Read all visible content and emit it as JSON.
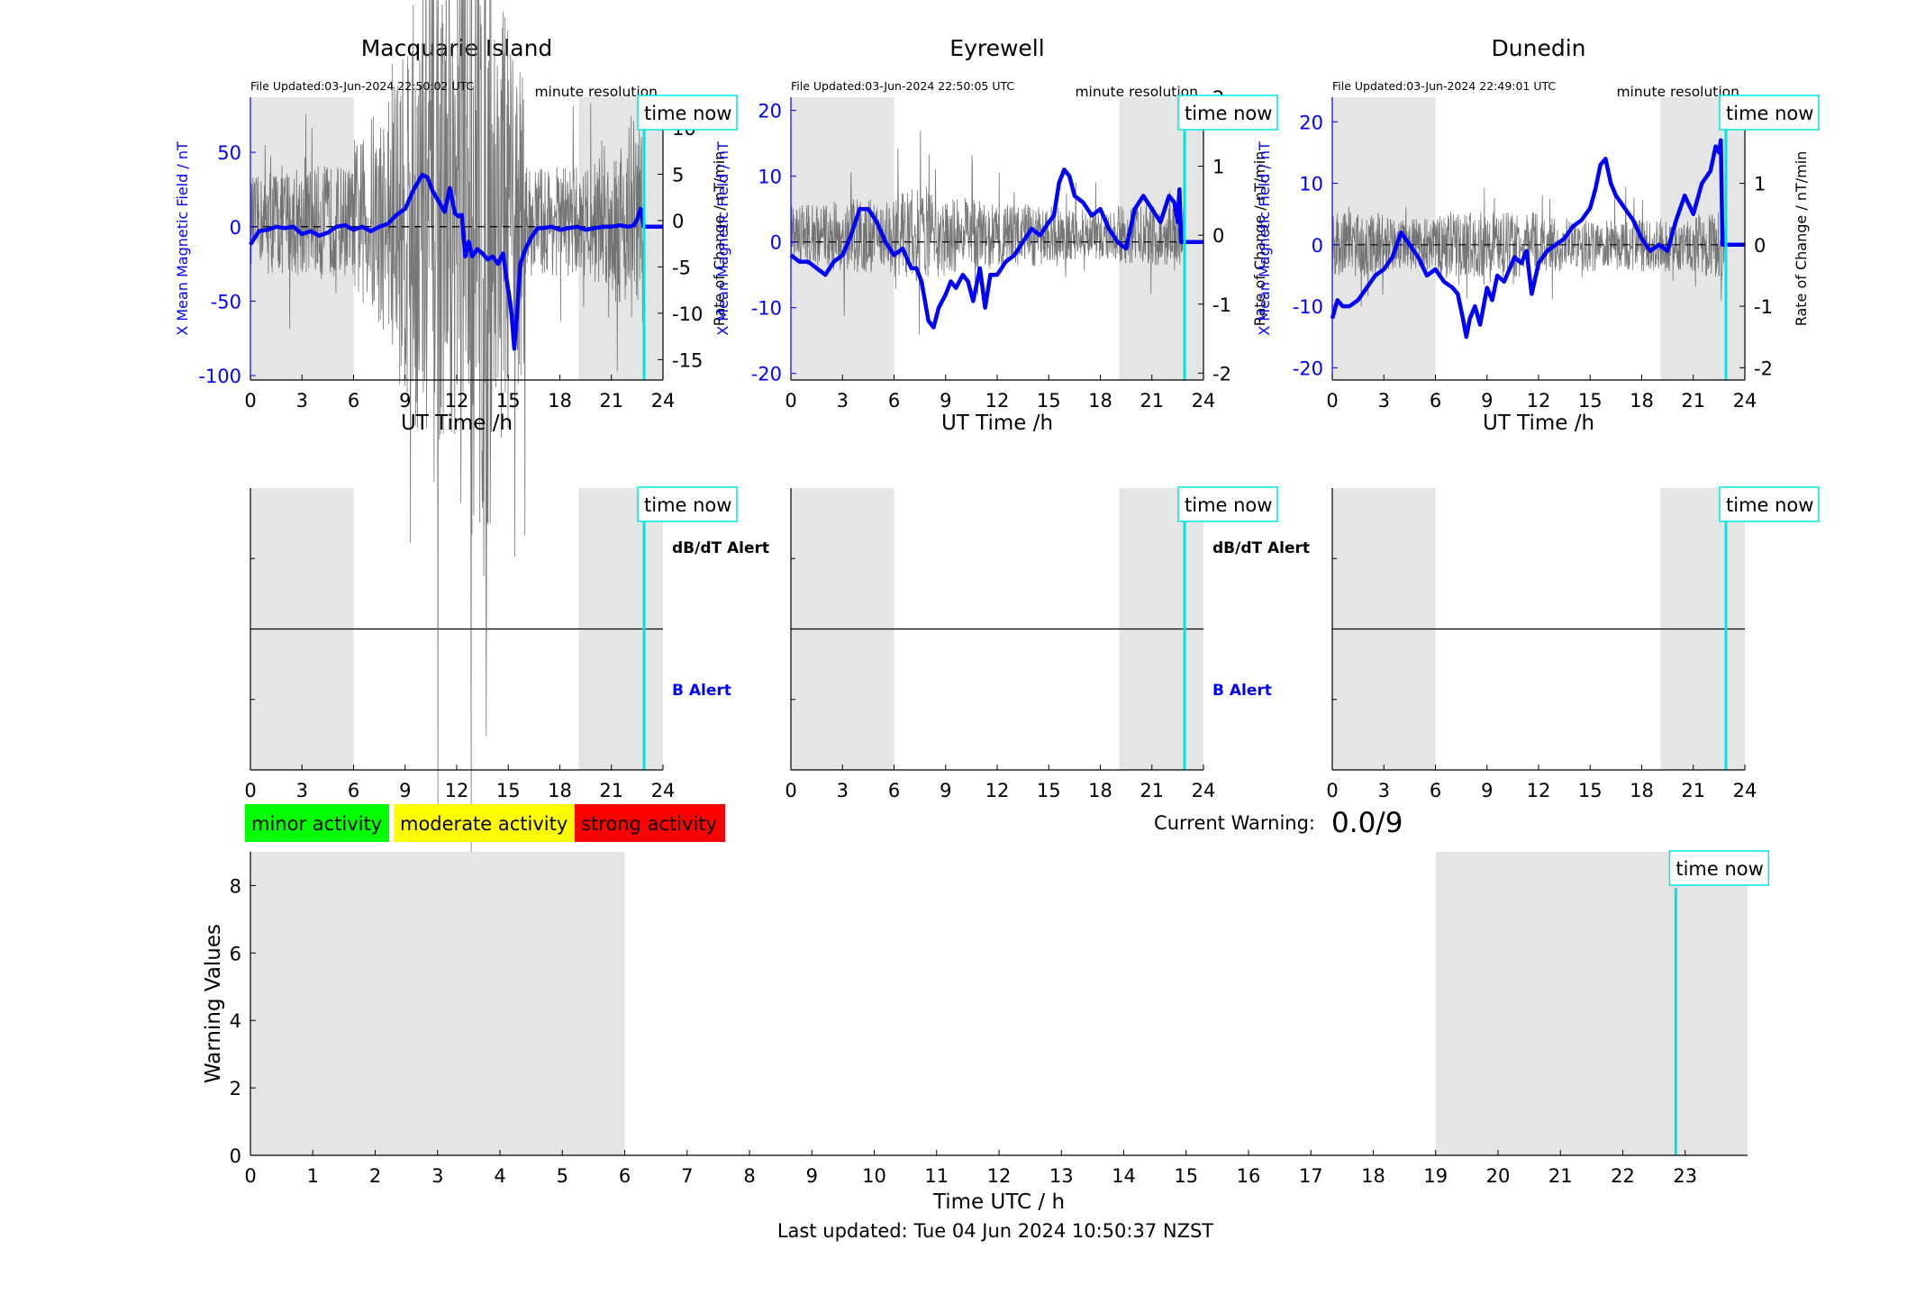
{
  "figure": {
    "current_warning_label": "Current Warning:",
    "current_warning_value": "0.0/9",
    "last_updated": "Last updated: Tue 04 Jun 2024 10:50:37 NZST",
    "legend": [
      {
        "label": "minor activity",
        "color": "#00ff00"
      },
      {
        "label": "moderate activity",
        "color": "#ffff00"
      },
      {
        "label": "strong activity",
        "color": "#ff0000"
      }
    ],
    "colors": {
      "field": "#0000ff",
      "rate": "#555555",
      "now": "#00e5e5",
      "night": "#e5e5e5",
      "b_alert": "#0000ff"
    }
  },
  "chart_data": [
    {
      "type": "line",
      "title": "Macquarie Island",
      "file_updated": "File Updated:03-Jun-2024 22:50:02 UTC",
      "resolution": "minute resolution",
      "now_label": "time now",
      "now_hour": 22.9,
      "night_spans": [
        [
          0,
          6
        ],
        [
          19.1,
          24
        ]
      ],
      "xlabel": "UT Time /h",
      "xlim": [
        0,
        24
      ],
      "xticks": [
        "0",
        "3",
        "6",
        "9",
        "12",
        "15",
        "18",
        "21",
        "24"
      ],
      "ylabel_left": "X Mean Magnetic Field / nT",
      "ylim_left": [
        -103,
        87
      ],
      "yticks_left": [
        "50",
        "0",
        "-50",
        "-100"
      ],
      "ytick_values_left": [
        50,
        0,
        -50,
        -100
      ],
      "ylabel_right": "Rate of Change / nT/min",
      "ylim_right": [
        -17.2,
        13.3
      ],
      "yticks_right": [
        "10",
        "5",
        "0",
        "-5",
        "-10",
        "-15"
      ],
      "ytick_values_right": [
        10,
        5,
        0,
        -5,
        -10,
        -15
      ],
      "series": [
        {
          "name": "X Mean Magnetic Field / nT",
          "axis": "left",
          "x": [
            0,
            0.5,
            1,
            1.5,
            2,
            2.5,
            3,
            3.5,
            4,
            4.5,
            5,
            5.5,
            6,
            6.5,
            7,
            7.5,
            8,
            8.5,
            9,
            9.5,
            10,
            10.3,
            10.6,
            11,
            11.3,
            11.6,
            11.9,
            12.1,
            12.3,
            12.5,
            12.7,
            12.9,
            13.2,
            13.5,
            13.8,
            14.1,
            14.4,
            14.7,
            14.9,
            15.1,
            15.2,
            15.35,
            15.5,
            15.7,
            16,
            16.3,
            16.7,
            17,
            17.5,
            18,
            18.5,
            19,
            19.5,
            20,
            20.5,
            21,
            21.5,
            22,
            22.3,
            22.5,
            22.7,
            22.9,
            24
          ],
          "y": [
            -12,
            -3,
            -2,
            0,
            -1,
            0,
            -5,
            -3,
            -6,
            -4,
            0,
            1,
            -2,
            0,
            -3,
            0,
            2,
            8,
            12,
            25,
            35,
            33,
            24,
            16,
            10,
            26,
            9,
            7,
            8,
            -20,
            -10,
            -20,
            -15,
            -18,
            -22,
            -20,
            -25,
            -18,
            -35,
            -50,
            -60,
            -82,
            -60,
            -25,
            -15,
            -8,
            -1,
            -1,
            0,
            -2,
            -1,
            0,
            -2,
            -1,
            0,
            0,
            1,
            0,
            1,
            5,
            12,
            0,
            0
          ]
        },
        {
          "name": "Rate of Change / nT/min",
          "axis": "right",
          "noise": true,
          "amp": [
            0.8,
            1,
            1,
            1,
            1,
            1,
            1.5,
            2,
            3,
            4,
            5,
            4,
            6,
            6,
            4,
            3,
            1,
            1,
            1,
            1,
            1.2,
            1.5,
            2,
            2,
            1
          ]
        }
      ],
      "alert_panel": {
        "dbdt_label": "dB/dT Alert",
        "b_label": "B Alert"
      }
    },
    {
      "type": "line",
      "title": "Eyrewell",
      "file_updated": "File Updated:03-Jun-2024 22:50:05 UTC",
      "resolution": "minute resolution",
      "now_label": "time now",
      "now_hour": 22.9,
      "night_spans": [
        [
          0,
          6
        ],
        [
          19.1,
          24
        ]
      ],
      "xlabel": "UT Time /h",
      "xlim": [
        0,
        24
      ],
      "xticks": [
        "0",
        "3",
        "6",
        "9",
        "12",
        "15",
        "18",
        "21",
        "24"
      ],
      "ylabel_left": "X Mean Magnetic Field / nT",
      "ylim_left": [
        -21,
        22
      ],
      "yticks_left": [
        "20",
        "10",
        "0",
        "-10",
        "-20"
      ],
      "ytick_values_left": [
        20,
        10,
        0,
        -10,
        -20
      ],
      "ylabel_right": "Rate of Change / nT/min",
      "ylim_right": [
        -2.1,
        2.0
      ],
      "yticks_right": [
        "2",
        "1",
        "0",
        "-1",
        "-2"
      ],
      "ytick_values_right": [
        2,
        1,
        0,
        -1,
        -2
      ],
      "series": [
        {
          "name": "X Mean Magnetic Field / nT",
          "axis": "left",
          "x": [
            0,
            0.5,
            1,
            1.5,
            2,
            2.5,
            3,
            3.5,
            4,
            4.5,
            5,
            5.5,
            6,
            6.5,
            7,
            7.3,
            7.6,
            8,
            8.3,
            8.6,
            9,
            9.3,
            9.6,
            10,
            10.3,
            10.6,
            11,
            11.3,
            11.6,
            12,
            12.5,
            13,
            13.5,
            14,
            14.5,
            15,
            15.3,
            15.6,
            15.9,
            16.2,
            16.5,
            17,
            17.5,
            18,
            18.5,
            19,
            19.5,
            20,
            20.5,
            21,
            21.5,
            22,
            22.3,
            22.5,
            22.6,
            22.7,
            24
          ],
          "y": [
            -2,
            -3,
            -3,
            -4,
            -5,
            -3,
            -2,
            1,
            5,
            5,
            3,
            0,
            -2,
            -1,
            -4,
            -4,
            -6,
            -12,
            -13,
            -10,
            -8,
            -6,
            -7,
            -5,
            -6,
            -9,
            -4,
            -10,
            -5,
            -5,
            -3,
            -2,
            0,
            2,
            1,
            3,
            4,
            9,
            11,
            10,
            7,
            6,
            4,
            5,
            2,
            0,
            -1,
            5,
            7,
            5,
            3,
            7,
            6,
            3,
            8,
            0,
            0
          ]
        },
        {
          "name": "Rate of Change / nT/min",
          "axis": "right",
          "noise": true,
          "amp": [
            0.5,
            0.5,
            0.6,
            0.6,
            0.6,
            0.6,
            0.7,
            0.8,
            0.7,
            0.6,
            0.6,
            0.5,
            0.5,
            0.5,
            0.5,
            0.5,
            0.4,
            0.4,
            0.4,
            0.5,
            0.5,
            0.5,
            0.5,
            0.5,
            0.5
          ]
        }
      ],
      "alert_panel": {
        "dbdt_label": "dB/dT Alert",
        "b_label": "B Alert"
      }
    },
    {
      "type": "line",
      "title": "Dunedin",
      "file_updated": "File Updated:03-Jun-2024 22:49:01 UTC",
      "resolution": "minute resolution",
      "now_label": "time now",
      "now_hour": 22.9,
      "night_spans": [
        [
          0,
          6
        ],
        [
          19.1,
          24
        ]
      ],
      "xlabel": "UT Time /h",
      "xlim": [
        0,
        24
      ],
      "xticks": [
        "0",
        "3",
        "6",
        "9",
        "12",
        "15",
        "18",
        "21",
        "24"
      ],
      "ylabel_left": "X Mean Magnetic Field / nT",
      "ylim_left": [
        -22,
        24
      ],
      "yticks_left": [
        "20",
        "10",
        "0",
        "-10",
        "-20"
      ],
      "ytick_values_left": [
        20,
        10,
        0,
        -10,
        -20
      ],
      "ylabel_right": "Rate of Change / nT/min",
      "ylim_right": [
        -2.2,
        2.4
      ],
      "yticks_right": [
        "2",
        "1",
        "0",
        "-1",
        "-2"
      ],
      "ytick_values_right": [
        2,
        1,
        0,
        -1,
        -2
      ],
      "series": [
        {
          "name": "X Mean Magnetic Field / nT",
          "axis": "left",
          "x": [
            0,
            0.3,
            0.6,
            1,
            1.5,
            2,
            2.5,
            3,
            3.5,
            4,
            4.5,
            5,
            5.5,
            6,
            6.5,
            7,
            7.3,
            7.6,
            7.8,
            8,
            8.3,
            8.6,
            9,
            9.3,
            9.6,
            10,
            10.3,
            10.6,
            11,
            11.3,
            11.6,
            12,
            12.5,
            13,
            13.5,
            14,
            14.5,
            15,
            15.3,
            15.6,
            15.9,
            16.2,
            16.5,
            17,
            17.5,
            18,
            18.5,
            19,
            19.5,
            20,
            20.5,
            21,
            21.5,
            22,
            22.3,
            22.5,
            22.6,
            22.7,
            24
          ],
          "y": [
            -12,
            -9,
            -10,
            -10,
            -9,
            -7,
            -5,
            -4,
            -2,
            2,
            0,
            -2,
            -5,
            -4,
            -6,
            -7,
            -8,
            -12,
            -15,
            -12,
            -10,
            -13,
            -7,
            -9,
            -5,
            -6,
            -4,
            -2,
            -3,
            -1,
            -8,
            -3,
            -1,
            0,
            1,
            3,
            4,
            6,
            9,
            13,
            14,
            10,
            8,
            6,
            4,
            1,
            -1,
            0,
            -1,
            4,
            8,
            5,
            10,
            12,
            16,
            15,
            17,
            0,
            0
          ]
        },
        {
          "name": "Rate of Change / nT/min",
          "axis": "right",
          "noise": true,
          "amp": [
            0.5,
            0.5,
            0.5,
            0.4,
            0.4,
            0.4,
            0.5,
            0.5,
            0.5,
            0.5,
            0.5,
            0.5,
            0.4,
            0.4,
            0.4,
            0.4,
            0.4,
            0.4,
            0.4,
            0.4,
            0.4,
            0.5,
            0.5,
            0.6,
            0.6
          ]
        }
      ],
      "alert_panel": {
        "dbdt_label": "",
        "b_label": ""
      }
    },
    {
      "type": "bar",
      "title": "",
      "xlabel": "Time UTC / h",
      "ylabel": "Warning Values",
      "xlim": [
        0,
        24
      ],
      "ylim": [
        0,
        9
      ],
      "xticks": [
        "0",
        "1",
        "2",
        "3",
        "4",
        "5",
        "6",
        "7",
        "8",
        "9",
        "10",
        "11",
        "12",
        "13",
        "14",
        "15",
        "16",
        "17",
        "18",
        "19",
        "20",
        "21",
        "22",
        "23"
      ],
      "yticks": [
        "0",
        "2",
        "4",
        "6",
        "8"
      ],
      "ytick_values": [
        0,
        2,
        4,
        6,
        8
      ],
      "night_spans": [
        [
          0,
          6
        ],
        [
          19,
          24
        ]
      ],
      "now_label": "time now",
      "now_hour": 22.85,
      "values": []
    }
  ]
}
